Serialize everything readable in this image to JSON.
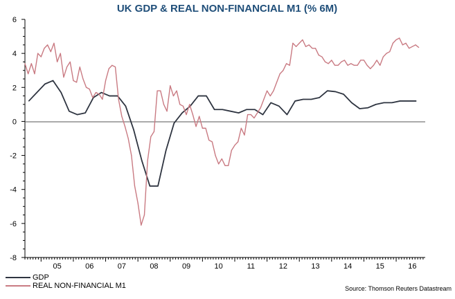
{
  "chart_data": {
    "type": "line",
    "title": "UK GDP & REAL NON-FINANCIAL M1 (% 6M)",
    "xlabel": "",
    "ylabel": "",
    "x_tick_labels": [
      "05",
      "06",
      "07",
      "08",
      "09",
      "10",
      "11",
      "12",
      "13",
      "14",
      "15",
      "16"
    ],
    "x_range": [
      2004.5,
      2016.9
    ],
    "ylim": [
      -8,
      6
    ],
    "y_ticks": [
      6,
      4,
      2,
      0,
      -2,
      -4,
      -6,
      -8
    ],
    "zero_line": true,
    "grid": false,
    "legend_position": "bottom-left",
    "source": "Source: Thomson Reuters Datastream",
    "series": [
      {
        "name": "GDP",
        "color": "#2e3440",
        "x": [
          2004.62,
          2004.87,
          2005.12,
          2005.37,
          2005.62,
          2005.87,
          2006.12,
          2006.37,
          2006.62,
          2006.87,
          2007.12,
          2007.37,
          2007.62,
          2007.87,
          2008.12,
          2008.37,
          2008.62,
          2008.87,
          2009.12,
          2009.37,
          2009.62,
          2009.87,
          2010.12,
          2010.37,
          2010.62,
          2010.87,
          2011.12,
          2011.37,
          2011.62,
          2011.87,
          2012.12,
          2012.37,
          2012.62,
          2012.87,
          2013.12,
          2013.37,
          2013.62,
          2013.87,
          2014.12,
          2014.37,
          2014.62,
          2014.87,
          2015.12,
          2015.37,
          2015.62,
          2015.87,
          2016.12,
          2016.37,
          2016.62
        ],
        "values": [
          1.2,
          1.7,
          2.2,
          2.4,
          1.7,
          0.6,
          0.4,
          0.5,
          1.4,
          1.7,
          1.5,
          1.5,
          0.9,
          -0.5,
          -2.3,
          -3.8,
          -3.8,
          -1.7,
          -0.1,
          0.5,
          0.9,
          1.5,
          1.5,
          0.7,
          0.7,
          0.6,
          0.5,
          0.7,
          0.7,
          0.4,
          1.1,
          0.9,
          0.4,
          1.2,
          1.3,
          1.3,
          1.4,
          1.8,
          1.75,
          1.6,
          1.1,
          0.75,
          0.8,
          1.0,
          1.1,
          1.1,
          1.2,
          1.2,
          1.2
        ]
      },
      {
        "name": "REAL NON-FINANCIAL M1",
        "color": "#c97a82",
        "x": [
          2004.5,
          2004.6,
          2004.7,
          2004.8,
          2004.9,
          2005.0,
          2005.1,
          2005.2,
          2005.3,
          2005.4,
          2005.5,
          2005.6,
          2005.7,
          2005.8,
          2005.9,
          2006.0,
          2006.1,
          2006.2,
          2006.3,
          2006.4,
          2006.5,
          2006.6,
          2006.7,
          2006.8,
          2006.9,
          2007.0,
          2007.1,
          2007.2,
          2007.3,
          2007.4,
          2007.5,
          2007.6,
          2007.7,
          2007.8,
          2007.9,
          2008.0,
          2008.1,
          2008.2,
          2008.3,
          2008.4,
          2008.5,
          2008.6,
          2008.7,
          2008.8,
          2008.9,
          2009.0,
          2009.1,
          2009.2,
          2009.3,
          2009.4,
          2009.5,
          2009.6,
          2009.7,
          2009.8,
          2009.9,
          2010.0,
          2010.1,
          2010.2,
          2010.3,
          2010.4,
          2010.5,
          2010.6,
          2010.7,
          2010.8,
          2010.9,
          2011.0,
          2011.1,
          2011.2,
          2011.3,
          2011.4,
          2011.5,
          2011.6,
          2011.7,
          2011.8,
          2011.9,
          2012.0,
          2012.1,
          2012.2,
          2012.3,
          2012.4,
          2012.5,
          2012.6,
          2012.7,
          2012.8,
          2012.9,
          2013.0,
          2013.1,
          2013.2,
          2013.3,
          2013.4,
          2013.5,
          2013.6,
          2013.7,
          2013.8,
          2013.9,
          2014.0,
          2014.1,
          2014.2,
          2014.3,
          2014.4,
          2014.5,
          2014.6,
          2014.7,
          2014.8,
          2014.9,
          2015.0,
          2015.1,
          2015.2,
          2015.3,
          2015.4,
          2015.5,
          2015.6,
          2015.7,
          2015.8,
          2015.9,
          2016.0,
          2016.1,
          2016.2,
          2016.3,
          2016.4,
          2016.5,
          2016.6,
          2016.7
        ],
        "values": [
          3.4,
          2.8,
          3.4,
          2.8,
          4.0,
          3.8,
          4.3,
          4.5,
          4.1,
          4.6,
          3.5,
          4.0,
          2.6,
          3.2,
          3.5,
          2.4,
          2.3,
          3.2,
          2.5,
          2.0,
          1.9,
          1.4,
          1.7,
          1.6,
          1.3,
          2.4,
          3.1,
          3.3,
          3.2,
          1.3,
          0.3,
          -0.3,
          -1.0,
          -2.0,
          -3.8,
          -4.8,
          -6.1,
          -5.5,
          -2.3,
          -0.9,
          -0.6,
          1.8,
          1.8,
          1.0,
          0.6,
          2.1,
          1.5,
          1.8,
          1.0,
          0.9,
          0.4,
          1.0,
          0.4,
          -0.3,
          0.3,
          -0.4,
          -0.4,
          -1.1,
          -1.2,
          -2.0,
          -2.5,
          -2.2,
          -2.6,
          -2.6,
          -1.7,
          -1.4,
          -1.2,
          -0.4,
          -0.8,
          0.4,
          0.4,
          0.2,
          0.5,
          0.8,
          1.3,
          1.8,
          1.5,
          1.8,
          2.3,
          2.8,
          3.0,
          3.4,
          3.3,
          4.6,
          4.4,
          4.6,
          4.8,
          4.4,
          4.5,
          4.3,
          4.3,
          3.9,
          3.8,
          3.5,
          3.4,
          3.6,
          3.3,
          3.3,
          3.5,
          3.6,
          3.3,
          3.4,
          3.3,
          3.3,
          3.6,
          3.6,
          3.3,
          3.1,
          3.3,
          3.6,
          3.3,
          3.8,
          4.0,
          4.1,
          4.6,
          4.8,
          4.9,
          4.5,
          4.6,
          4.3,
          4.4,
          4.5,
          4.35
        ]
      }
    ]
  }
}
